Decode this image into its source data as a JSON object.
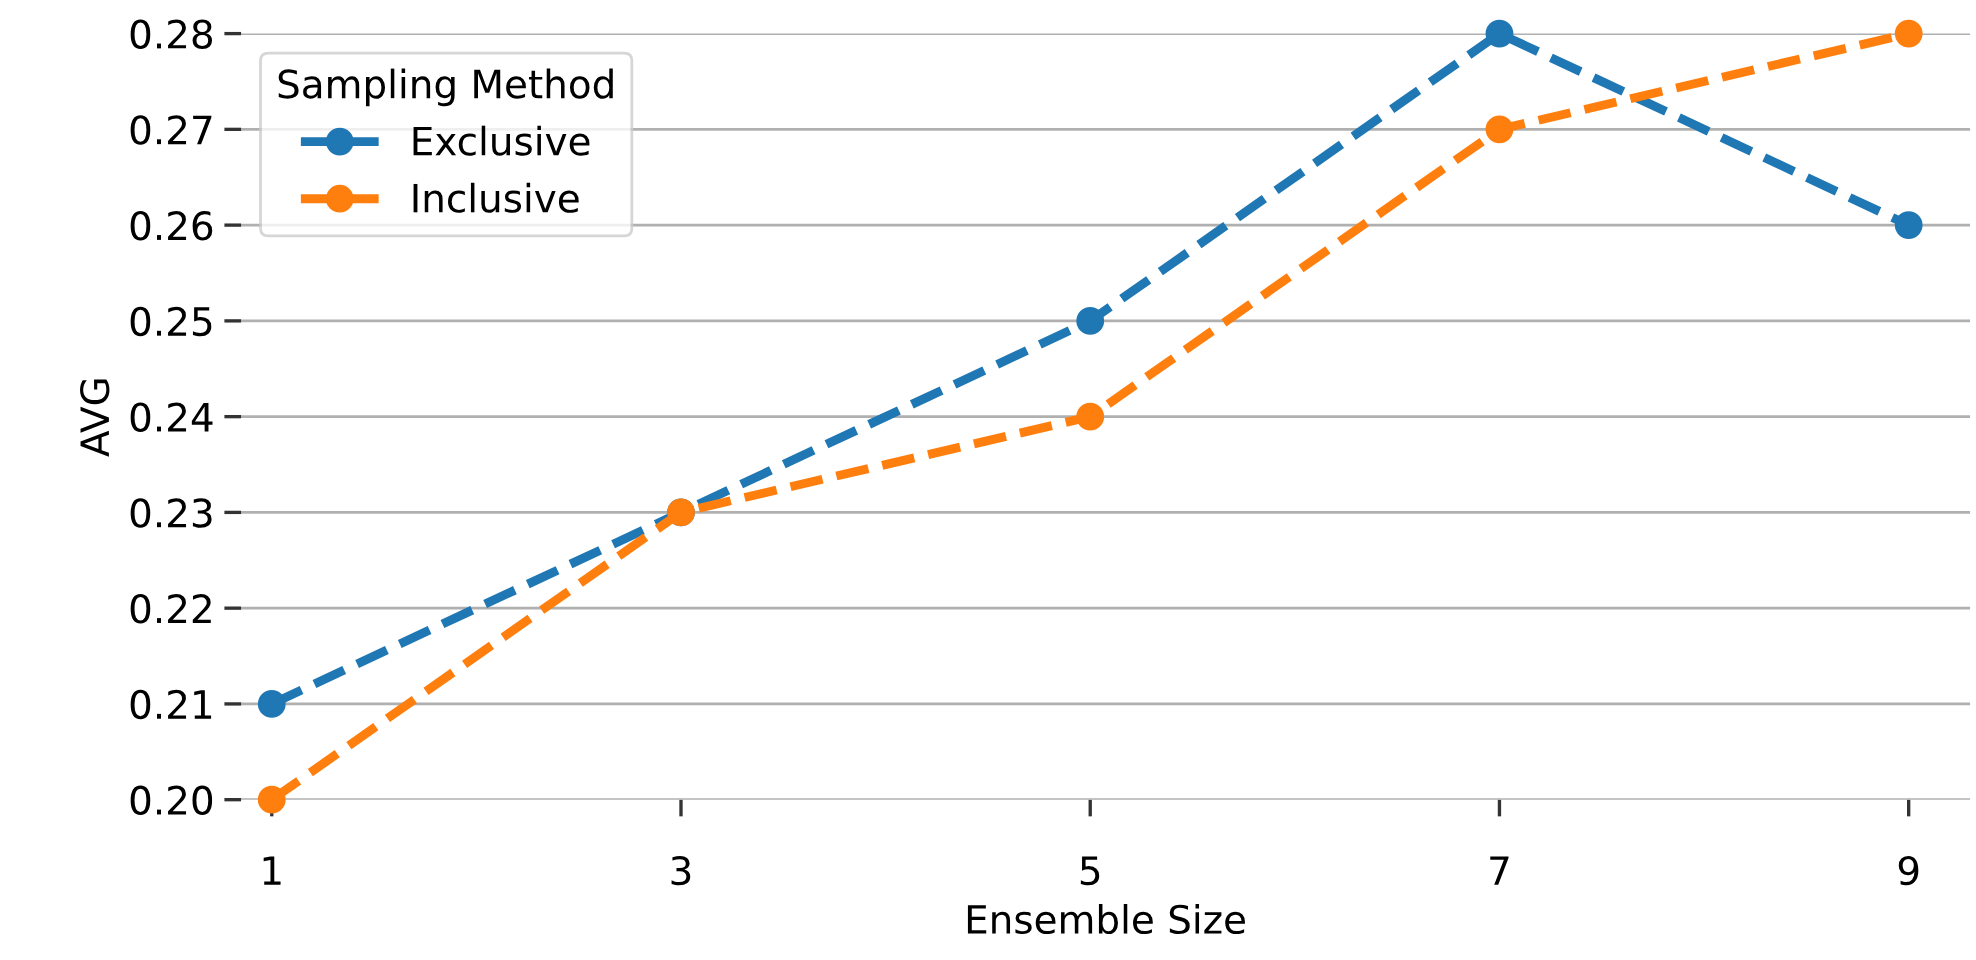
{
  "chart_data": {
    "type": "line",
    "xlabel": "Ensemble Size",
    "ylabel": "AVG",
    "legend_title": "Sampling Method",
    "x": [
      1,
      3,
      5,
      7,
      9
    ],
    "series": [
      {
        "name": "Exclusive",
        "color": "#1f77b4",
        "values": [
          0.21,
          0.23,
          0.25,
          0.28,
          0.26
        ]
      },
      {
        "name": "Inclusive",
        "color": "#ff7f0e",
        "values": [
          0.2,
          0.23,
          0.24,
          0.27,
          0.28
        ]
      }
    ],
    "xlim": [
      0.85,
      9.3
    ],
    "ylim": [
      0.2,
      0.28
    ],
    "xticks": [
      1,
      3,
      5,
      7,
      9
    ],
    "yticks": [
      {
        "value": 0.2,
        "label": "0.20"
      },
      {
        "value": 0.21,
        "label": "0.21"
      },
      {
        "value": 0.22,
        "label": "0.22"
      },
      {
        "value": 0.23,
        "label": "0.23"
      },
      {
        "value": 0.24,
        "label": "0.24"
      },
      {
        "value": 0.25,
        "label": "0.25"
      },
      {
        "value": 0.26,
        "label": "0.26"
      },
      {
        "value": 0.27,
        "label": "0.27"
      },
      {
        "value": 0.28,
        "label": "0.28"
      }
    ],
    "grid": "y",
    "legend": "top left",
    "marker": "circle",
    "line_style": "dashed"
  }
}
